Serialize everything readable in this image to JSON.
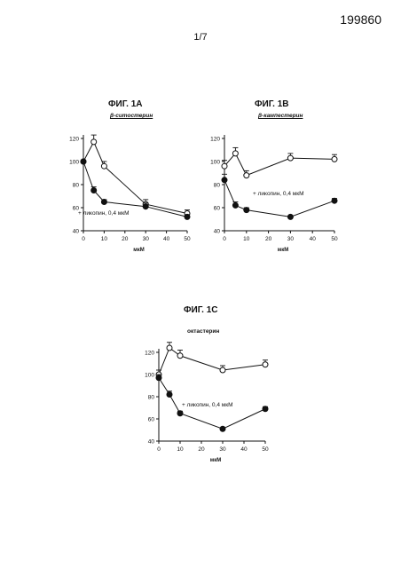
{
  "document": {
    "number": "199860",
    "page": "1/7"
  },
  "chart_data": [
    {
      "id": "fig1a",
      "type": "line",
      "title": "ФИГ. 1А",
      "subtitle": "β-ситостерин",
      "xlabel": "мкМ",
      "ylabel": "",
      "xlim": [
        0,
        50
      ],
      "ylim": [
        40,
        120
      ],
      "xticks": [
        0,
        10,
        20,
        30,
        40,
        50
      ],
      "yticks": [
        40,
        60,
        80,
        100,
        120
      ],
      "annotation": "+ ликопин, 0,4 мкМ",
      "series": [
        {
          "marker": "open",
          "x": [
            0,
            5,
            10,
            30,
            50
          ],
          "y": [
            100,
            117,
            96,
            63,
            55
          ],
          "err": [
            0,
            6,
            4,
            4,
            3
          ]
        },
        {
          "marker": "filled",
          "x": [
            0,
            5,
            10,
            30,
            50
          ],
          "y": [
            100,
            75,
            65,
            61,
            52
          ],
          "err": [
            0,
            3,
            2,
            3,
            2
          ]
        }
      ]
    },
    {
      "id": "fig1b",
      "type": "line",
      "title": "ФИГ. 1В",
      "subtitle": "β-кампестерин",
      "xlabel": "мкМ",
      "ylabel": "",
      "xlim": [
        0,
        50
      ],
      "ylim": [
        40,
        120
      ],
      "xticks": [
        0,
        10,
        20,
        30,
        40,
        50
      ],
      "yticks": [
        40,
        60,
        80,
        100,
        120
      ],
      "annotation": "+ ликопин, 0,4 мкМ",
      "series": [
        {
          "marker": "open",
          "x": [
            0,
            5,
            10,
            30,
            50
          ],
          "y": [
            96,
            107,
            88,
            103,
            102
          ],
          "err": [
            5,
            5,
            4,
            4,
            4
          ]
        },
        {
          "marker": "filled",
          "x": [
            0,
            5,
            10,
            30,
            50
          ],
          "y": [
            84,
            62,
            58,
            52,
            66
          ],
          "err": [
            5,
            3,
            2,
            0,
            2
          ]
        }
      ]
    },
    {
      "id": "fig1c",
      "type": "line",
      "title": "ФИГ. 1С",
      "subtitle": "октастерин",
      "xlabel": "мкМ",
      "ylabel": "",
      "xlim": [
        0,
        50
      ],
      "ylim": [
        40,
        120
      ],
      "xticks": [
        0,
        10,
        20,
        30,
        40,
        50
      ],
      "yticks": [
        40,
        60,
        80,
        100,
        120
      ],
      "annotation": "+ ликопин, 0,4 мкМ",
      "series": [
        {
          "marker": "open",
          "x": [
            0,
            5,
            10,
            30,
            50
          ],
          "y": [
            100,
            124,
            117,
            104,
            109
          ],
          "err": [
            4,
            5,
            5,
            4,
            4
          ]
        },
        {
          "marker": "filled",
          "x": [
            0,
            5,
            10,
            30,
            50
          ],
          "y": [
            97,
            82,
            65,
            51,
            69
          ],
          "err": [
            3,
            3,
            2,
            0,
            2
          ]
        }
      ]
    }
  ]
}
